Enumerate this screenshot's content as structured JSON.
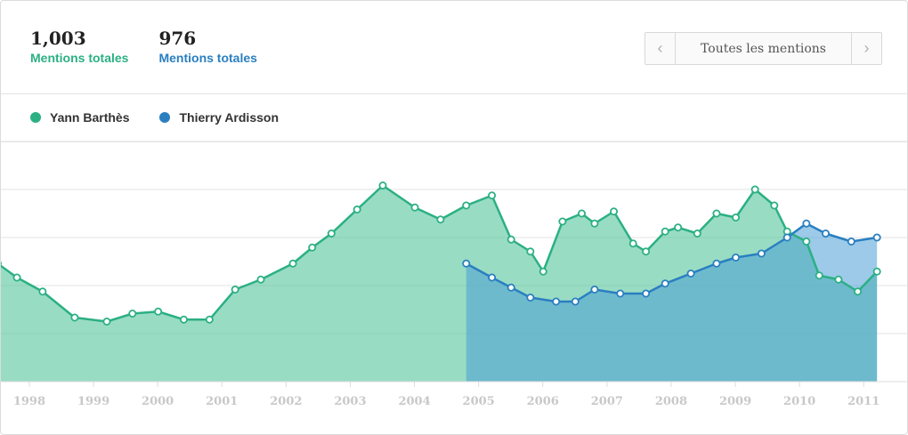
{
  "header": {
    "stats": [
      {
        "value": "1,003",
        "label": "Mentions totales",
        "color": "#2bb084"
      },
      {
        "value": "976",
        "label": "Mentions totales",
        "color": "#2a7fc0"
      }
    ],
    "switcher": {
      "label": "Toutes les mentions",
      "prev_icon": "chevron-left-icon",
      "next_icon": "chevron-right-icon"
    }
  },
  "legend": [
    {
      "name": "Yann Barthès",
      "color": "#2bb084"
    },
    {
      "name": "Thierry Ardisson",
      "color": "#2a7fc0"
    }
  ],
  "chart_data": {
    "type": "area",
    "xlabel": "",
    "ylabel": "",
    "x_ticks": [
      "1998",
      "1999",
      "2000",
      "2001",
      "2002",
      "2003",
      "2004",
      "2005",
      "2006",
      "2007",
      "2008",
      "2009",
      "2010",
      "2011"
    ],
    "grid": true,
    "series": [
      {
        "name": "Yann Barthès",
        "color": "#2bb084",
        "x": [
          1997.5,
          1997.8,
          1998.2,
          1998.7,
          1999.2,
          1999.6,
          2000.0,
          2000.4,
          2000.8,
          2001.2,
          2001.6,
          2002.1,
          2002.4,
          2002.7,
          2003.1,
          2003.5,
          2004.0,
          2004.4,
          2004.8,
          2005.2,
          2005.5,
          2005.8,
          2006.0,
          2006.3,
          2006.6,
          2006.8,
          2007.1,
          2007.4,
          2007.6,
          2007.9,
          2008.1,
          2008.4,
          2008.7,
          2009.0,
          2009.3,
          2009.6,
          2009.8,
          2010.1,
          2010.3,
          2010.6,
          2010.9,
          2011.2
        ],
        "values": [
          59,
          52,
          45,
          32,
          30,
          34,
          35,
          31,
          31,
          46,
          51,
          59,
          67,
          74,
          86,
          98,
          87,
          81,
          88,
          93,
          71,
          65,
          55,
          80,
          84,
          79,
          85,
          69,
          65,
          75,
          77,
          74,
          84,
          82,
          96,
          88,
          75,
          70,
          53,
          51,
          45,
          55
        ]
      },
      {
        "name": "Thierry Ardisson",
        "color": "#2a7fc0",
        "x": [
          2004.8,
          2005.2,
          2005.5,
          2005.8,
          2006.2,
          2006.5,
          2006.8,
          2007.2,
          2007.6,
          2007.9,
          2008.3,
          2008.7,
          2009.0,
          2009.4,
          2009.8,
          2010.1,
          2010.4,
          2010.8,
          2011.2
        ],
        "values": [
          59,
          52,
          47,
          42,
          40,
          40,
          46,
          44,
          44,
          49,
          54,
          59,
          62,
          64,
          72,
          79,
          74,
          70,
          72
        ]
      }
    ]
  }
}
